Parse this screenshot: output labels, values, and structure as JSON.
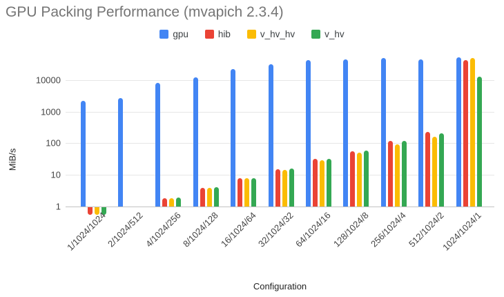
{
  "header": {
    "title": "GPU Packing Performance (mvapich 2.3.4)"
  },
  "chart_data": {
    "type": "bar",
    "title": "GPU Packing Performance (mvapich 2.3.4)",
    "xlabel": "Configuration",
    "ylabel": "MiB/s",
    "y_scale": "log",
    "y_ticks": [
      1,
      10,
      100,
      1000,
      10000
    ],
    "ylim": [
      0.4,
      100000
    ],
    "grid": true,
    "legend_position": "top",
    "categories": [
      "1/1024/1024",
      "2/1024/512",
      "4/1024/256",
      "8/1024/128",
      "16/1024/64",
      "32/1024/32",
      "64/1024/16",
      "128/1024/8",
      "256/1024/4",
      "512/1024/2",
      "1024/1024/1"
    ],
    "series": [
      {
        "name": "gpu",
        "color": "#4285F4",
        "values": [
          2200,
          2700,
          8100,
          12500,
          22000,
          32000,
          44000,
          46000,
          50000,
          46000,
          52000
        ]
      },
      {
        "name": "hib",
        "color": "#EA4335",
        "values": [
          0.55,
          null,
          1.8,
          3.9,
          7.7,
          15,
          31,
          56,
          118,
          225,
          43000
        ]
      },
      {
        "name": "v_hv_hv",
        "color": "#FBBC04",
        "values": [
          0.55,
          null,
          1.8,
          3.8,
          7.6,
          14,
          29,
          49,
          93,
          160,
          51000
        ]
      },
      {
        "name": "v_hv",
        "color": "#34A853",
        "values": [
          0.55,
          null,
          1.9,
          4.0,
          7.9,
          16,
          31,
          58,
          118,
          210,
          12800
        ]
      }
    ]
  }
}
